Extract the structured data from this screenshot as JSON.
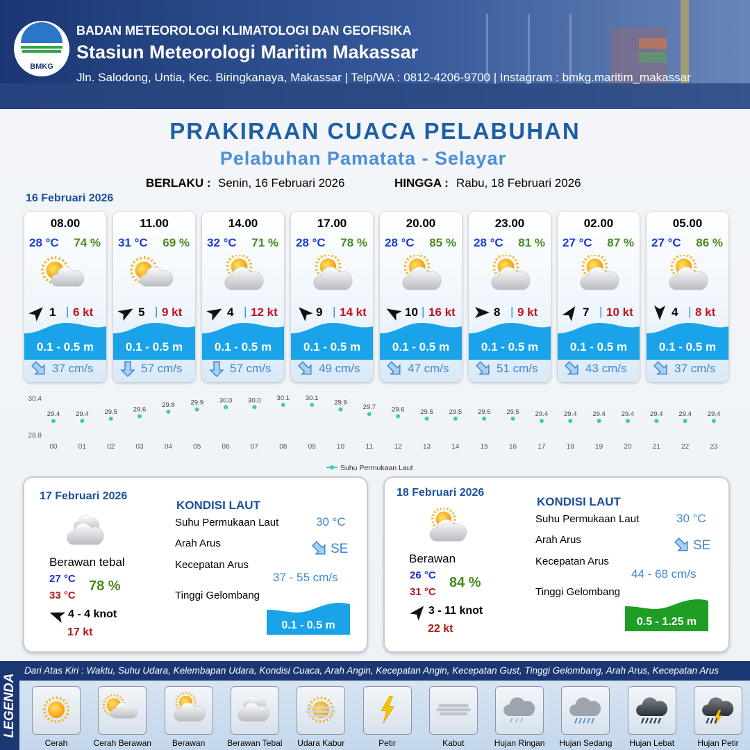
{
  "header": {
    "logo": "BMKG",
    "agency": "BADAN METEOROLOGI KLIMATOLOGI DAN GEOFISIKA",
    "station": "Stasiun Meteorologi Maritim Makassar",
    "address": "Jln. Salodong, Untia, Kec. Biringkanaya, Makassar | Telp/WA : 0812-4206-9700 | Instagram : bmkg.maritim_makassar"
  },
  "title": "PRAKIRAAN CUACA PELABUHAN",
  "subtitle": "Pelabuhan Pamatata - Selayar",
  "validity": {
    "from_label": "BERLAKU :",
    "from": "Senin, 16 Februari 2026",
    "to_label": "HINGGA :",
    "to": "Rabu, 18 Februari 2026"
  },
  "day1": {
    "date": "16 Februari 2026",
    "separator": "|",
    "forecasts": [
      {
        "time": "08.00",
        "temp": "28 °C",
        "humidity": "74 %",
        "wind": "1",
        "gust": "6 kt",
        "wave": "0.1 - 0.5 m",
        "current": "37 cm/s"
      },
      {
        "time": "11.00",
        "temp": "31 °C",
        "humidity": "69 %",
        "wind": "5",
        "gust": "9 kt",
        "wave": "0.1 - 0.5 m",
        "current": "57 cm/s"
      },
      {
        "time": "14.00",
        "temp": "32 °C",
        "humidity": "71 %",
        "wind": "4",
        "gust": "12 kt",
        "wave": "0.1 - 0.5 m",
        "current": "57 cm/s"
      },
      {
        "time": "17.00",
        "temp": "28 °C",
        "humidity": "78 %",
        "wind": "9",
        "gust": "14 kt",
        "wave": "0.1 - 0.5 m",
        "current": "49 cm/s"
      },
      {
        "time": "20.00",
        "temp": "28 °C",
        "humidity": "85 %",
        "wind": "10",
        "gust": "16 kt",
        "wave": "0.1 - 0.5 m",
        "current": "47 cm/s"
      },
      {
        "time": "23.00",
        "temp": "28 °C",
        "humidity": "81 %",
        "wind": "8",
        "gust": "9 kt",
        "wave": "0.1 - 0.5 m",
        "current": "51 cm/s"
      },
      {
        "time": "02.00",
        "temp": "27 °C",
        "humidity": "87 %",
        "wind": "7",
        "gust": "10 kt",
        "wave": "0.1 - 0.5 m",
        "current": "43 cm/s"
      },
      {
        "time": "05.00",
        "temp": "27 °C",
        "humidity": "86 %",
        "wind": "4",
        "gust": "8 kt",
        "wave": "0.1 - 0.5 m",
        "current": "37 cm/s"
      }
    ]
  },
  "chart_data": {
    "type": "line",
    "x": [
      "00",
      "01",
      "02",
      "03",
      "04",
      "05",
      "06",
      "07",
      "08",
      "09",
      "10",
      "11",
      "12",
      "13",
      "14",
      "15",
      "16",
      "17",
      "18",
      "19",
      "20",
      "21",
      "22",
      "23"
    ],
    "series": [
      {
        "name": "Suhu Permukaan Laut",
        "color": "#3ec9b9",
        "values": [
          29.4,
          29.4,
          29.5,
          29.6,
          29.8,
          29.9,
          30.0,
          30.0,
          30.1,
          30.1,
          29.9,
          29.7,
          29.6,
          29.5,
          29.5,
          29.5,
          29.5,
          29.4,
          29.4,
          29.4,
          29.4,
          29.4,
          29.4,
          29.4
        ],
        "value_labels": [
          "29.4",
          "29.4",
          "29.5",
          "29.6",
          "29.8",
          "29.9",
          "30.0",
          "30.0",
          "30.1",
          "30.1",
          "29.9",
          "29.7",
          "29.6",
          "29.5",
          "29.5",
          "29.5",
          "29.5",
          "29.4",
          "29.4",
          "29.4",
          "29.4",
          "29.4",
          "29.4",
          "29.4"
        ]
      }
    ],
    "ylim": [
      28.8,
      30.4
    ],
    "yticks": [
      28.8,
      30.4
    ],
    "grid": false
  },
  "days": [
    {
      "date": "17 Februari 2026",
      "condition": "Berawan tebal",
      "temp_min": "27 °C",
      "temp_max": "33 °C",
      "humidity": "78 %",
      "wind": "4  - 4 knot",
      "gust": "17 kt",
      "sea": {
        "heading": "KONDISI LAUT",
        "sst_label": "Suhu Permukaan Laut",
        "sst": "30 °C",
        "direction_label": "Arah Arus",
        "direction": "SE",
        "speed_label": "Kecepatan Arus",
        "speed": "37 - 55 cm/s",
        "wave_label": "Tinggi Gelombang",
        "wave": "0.1 - 0.5 m",
        "wave_color": "#1aa3e8"
      }
    },
    {
      "date": "18 Februari 2026",
      "condition": "Berawan",
      "temp_min": "26 °C",
      "temp_max": "31 °C",
      "humidity": "84 %",
      "wind": "3  - 11 knot",
      "gust": "22 kt",
      "sea": {
        "heading": "KONDISI LAUT",
        "sst_label": "Suhu Permukaan Laut",
        "sst": "30 °C",
        "direction_label": "Arah Arus",
        "direction": "SE",
        "speed_label": "Kecepatan Arus",
        "speed": "44 - 68 cm/s",
        "wave_label": "Tinggi Gelombang",
        "wave": "0.5 - 1.25 m",
        "wave_color": "#1e9e24"
      }
    }
  ],
  "legend": {
    "title": "LEGENDA",
    "description": "Dari Atas Kiri : Waktu, Suhu Udara, Kelembapan Udara, Kondisi Cuaca, Arah Angin, Kecepatan Angin, Kecepatan Gust, Tinggi Gelombang, Arah Arus, Kecepatan Arus",
    "items": [
      "Cerah",
      "Cerah Berawan",
      "Berawan",
      "Berawan Tebal",
      "Udara Kabur",
      "Petir",
      "Kabut",
      "Hujan Ringan",
      "Hujan Sedang",
      "Hujan Lebat",
      "Hujan Petir"
    ]
  }
}
